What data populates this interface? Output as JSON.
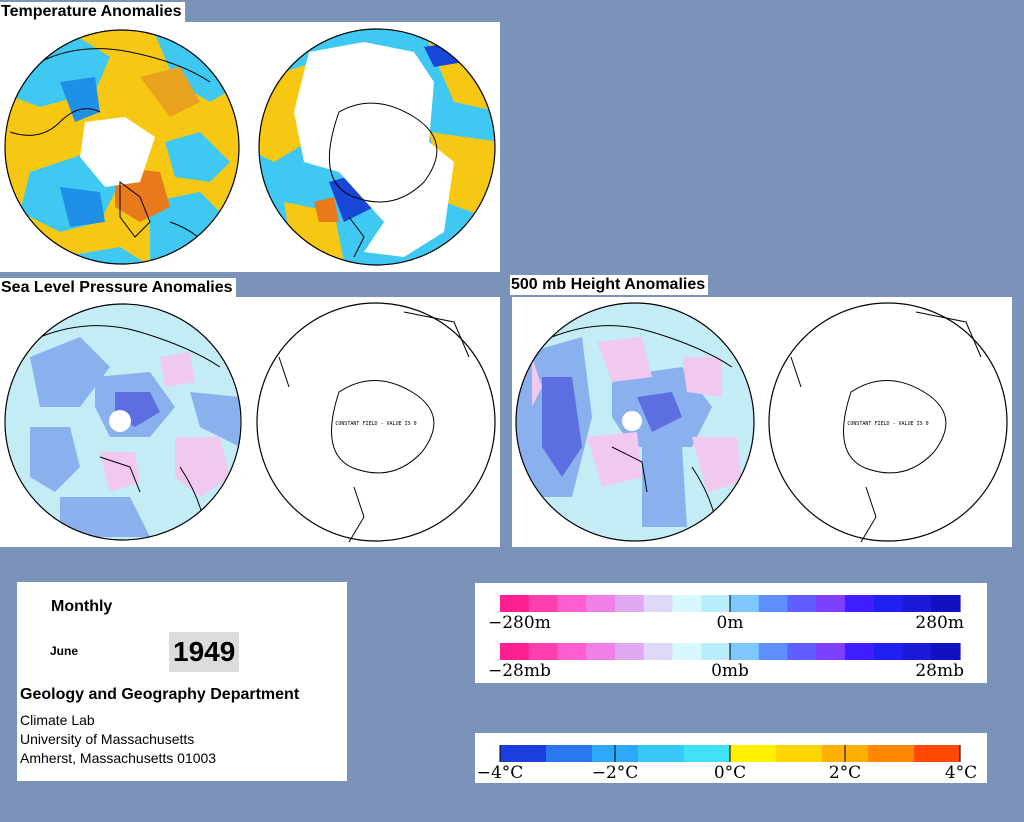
{
  "headings": {
    "temperature": "Temperature Anomalies",
    "slp": "Sea Level Pressure Anomalies",
    "height": "500 mb Height Anomalies"
  },
  "constant_field_note": "CONSTANT FIELD - VALUE IS 0",
  "info": {
    "period": "Monthly",
    "month": "June",
    "year": "1949",
    "department": "Geology and Geography Department",
    "lab": "Climate Lab",
    "university": "University of Massachusetts",
    "address": "Amherst, Massachusetts 01003"
  },
  "scales": {
    "height": {
      "labels": [
        "−280m",
        "0m",
        "280m"
      ],
      "colors": [
        "#ff1f8f",
        "#ff3fb0",
        "#ff5fd0",
        "#f080e8",
        "#e0a8f0",
        "#e0d8f8",
        "#d8f8ff",
        "#b8eefc",
        "#7fc8ff",
        "#5f8fff",
        "#5f5fff",
        "#7f3fff",
        "#3f1fff",
        "#2020f0",
        "#1a1ad8",
        "#1010c0"
      ]
    },
    "pressure": {
      "labels": [
        "−28mb",
        "0mb",
        "28mb"
      ],
      "colors": [
        "#ff1f8f",
        "#ff3fb0",
        "#ff5fd0",
        "#f080e8",
        "#e0a8f0",
        "#e0d8f8",
        "#d8f8ff",
        "#b8eefc",
        "#7fc8ff",
        "#5f8fff",
        "#5f5fff",
        "#7f3fff",
        "#3f1fff",
        "#2020f0",
        "#1a1ad8",
        "#1010c0"
      ]
    },
    "temperature": {
      "labels": [
        "−4°C",
        "−2°C",
        "0°C",
        "2°C",
        "4°C"
      ],
      "colors": [
        "#1a3fdc",
        "#2a78f0",
        "#2ea8f8",
        "#38c8f8",
        "#42e0f4",
        "#fff000",
        "#ffd400",
        "#ffb000",
        "#ff8800",
        "#ff4a00"
      ]
    }
  },
  "colors": {
    "background": "#7b93b8",
    "warm": "#f6c814",
    "cold_light": "#3ec8f2",
    "cold_mid": "#1f8fe8",
    "cold_deep": "#1846d8",
    "warm_deep": "#e87a1c",
    "slp_fill": "#c4ecf4",
    "slp_neg": "#8ab0ee",
    "slp_neg2": "#5d6fe0",
    "slp_pos": "#f0c8f0"
  }
}
